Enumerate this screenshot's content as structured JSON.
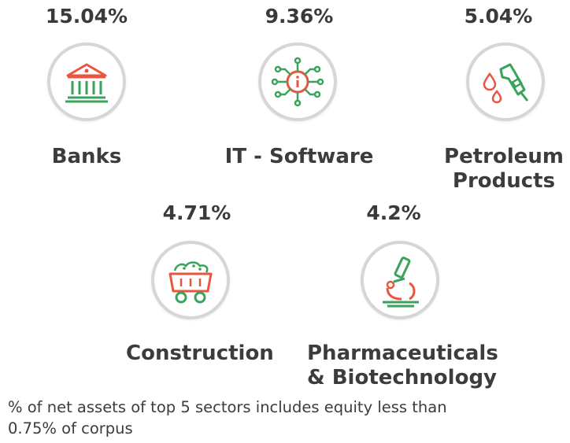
{
  "sectors": [
    {
      "percent": "15.04%",
      "name": "Banks",
      "icon": "bank-building-icon"
    },
    {
      "percent": "9.36%",
      "name": "IT - Software",
      "icon": "circuit-chip-icon"
    },
    {
      "percent": "5.04%",
      "name_line1": "Petroleum",
      "name_line2": "Products",
      "icon": "fuel-nozzle-icon"
    },
    {
      "percent": "4.71%",
      "name": "Construction",
      "icon": "mining-cart-icon"
    },
    {
      "percent": "4.2%",
      "name_line1": "Pharmaceuticals",
      "name_line2": "& Biotechnology",
      "icon": "microscope-icon"
    }
  ],
  "footnote_line1": "% of net assets of top 5 sectors includes equity less than",
  "footnote_line2": "0.75% of corpus",
  "colors": {
    "green": "#3aa35b",
    "red": "#e8563f",
    "ring": "#d6d6d6",
    "text": "#3c3c3c"
  }
}
